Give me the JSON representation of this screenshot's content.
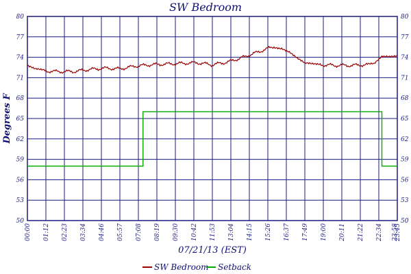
{
  "chart_data": {
    "type": "line",
    "title": "SW Bedroom",
    "xlabel": "07/21/13 (EST)",
    "ylabel": "Degrees F",
    "ylim": [
      50,
      80
    ],
    "xlim": [
      0,
      1440
    ],
    "y_ticks": [
      "50",
      "53",
      "56",
      "59",
      "62",
      "65",
      "68",
      "71",
      "74",
      "77",
      "80"
    ],
    "x_ticks": [
      "00:00",
      "01:12",
      "02:23",
      "03:34",
      "04:46",
      "05:57",
      "07:08",
      "08:19",
      "09:30",
      "10:42",
      "11:53",
      "13:04",
      "14:15",
      "15:26",
      "16:37",
      "17:49",
      "19:00",
      "20:11",
      "21:22",
      "22:34",
      "23:45",
      "23:58"
    ],
    "grid": true,
    "legend_position": "bottom",
    "series": [
      {
        "name": "SW Bedroom",
        "color": "#990000",
        "x": [
          0,
          30,
          60,
          120,
          180,
          240,
          300,
          360,
          420,
          480,
          540,
          600,
          660,
          720,
          780,
          840,
          900,
          960,
          990,
          1020,
          1050,
          1080,
          1110,
          1140,
          1200,
          1260,
          1320,
          1350,
          1380,
          1410,
          1440
        ],
        "y": [
          72.8,
          72.2,
          72.0,
          71.9,
          71.9,
          72.2,
          72.4,
          72.3,
          72.7,
          72.9,
          73.0,
          73.1,
          73.2,
          72.9,
          73.3,
          74.0,
          74.8,
          75.6,
          75.4,
          74.8,
          73.8,
          73.0,
          72.9,
          72.9,
          72.8,
          72.8,
          72.9,
          72.9,
          74.0,
          74.1,
          74.3
        ]
      },
      {
        "name": "Setback",
        "color": "#00aa00",
        "x": [
          0,
          450,
          450,
          1380,
          1380,
          1440
        ],
        "y": [
          58,
          58,
          66,
          66,
          58,
          58
        ]
      }
    ]
  }
}
